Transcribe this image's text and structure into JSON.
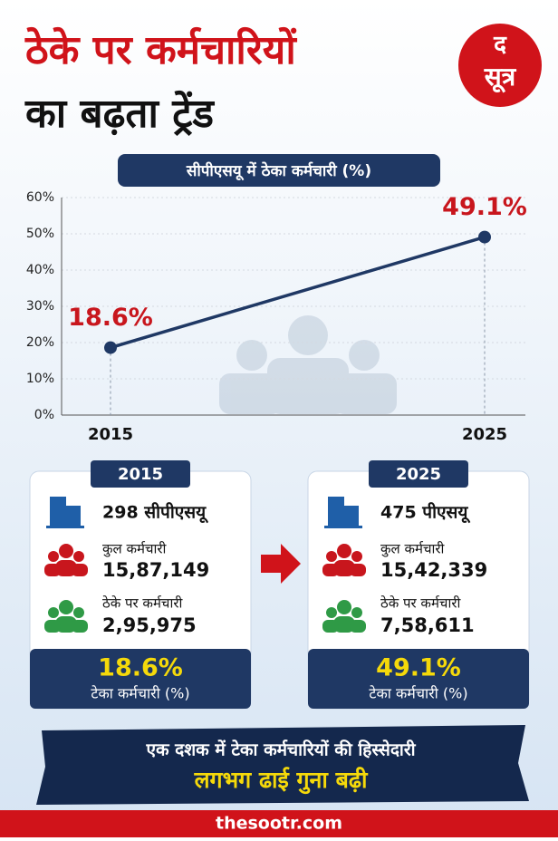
{
  "header": {
    "title_line1": "ठेके पर कर्मचारियों",
    "title_line2": "का बढ़ता ट्रेंड",
    "logo_top": "द",
    "logo_bottom": "सूत्र"
  },
  "chart_data": {
    "type": "line",
    "title": "सीपीएसयू में ठेका कर्मचारी (%)",
    "categories": [
      "2015",
      "2025"
    ],
    "values": [
      18.6,
      49.1
    ],
    "value_labels": [
      "18.6%",
      "49.1%"
    ],
    "color": "#1f3864",
    "label_color": "#c8161d",
    "ylim": [
      0,
      60
    ],
    "yticks": [
      {
        "value": 0,
        "label": "0%"
      },
      {
        "value": 10,
        "label": "10%"
      },
      {
        "value": 20,
        "label": "20%"
      },
      {
        "value": 30,
        "label": "30%"
      },
      {
        "value": 40,
        "label": "40%"
      },
      {
        "value": 50,
        "label": "50%"
      },
      {
        "value": 60,
        "label": "60%"
      }
    ],
    "grid": true
  },
  "cards": [
    {
      "year": "2015",
      "units": "298 सीपीएसयू",
      "total_label": "कुल कर्मचारी",
      "total": "15,87,149",
      "contract_label": "ठेके पर कर्मचारी",
      "contract": "2,95,975",
      "share": "18.6%",
      "share_label": "टेका कर्मचारी (%)"
    },
    {
      "year": "2025",
      "units": "475 पीएसयू",
      "total_label": "कुल कर्मचारी",
      "total": "15,42,339",
      "contract_label": "ठेके पर कर्मचारी",
      "contract": "7,58,611",
      "share": "49.1%",
      "share_label": "टेका कर्मचारी (%)"
    }
  ],
  "banner": {
    "line1": "एक दशक में टेका कर्मचारियों की हिस्सेदारी",
    "line2": "लगभग ढाई गुना बढ़ी"
  },
  "footer": "thesootr.com"
}
